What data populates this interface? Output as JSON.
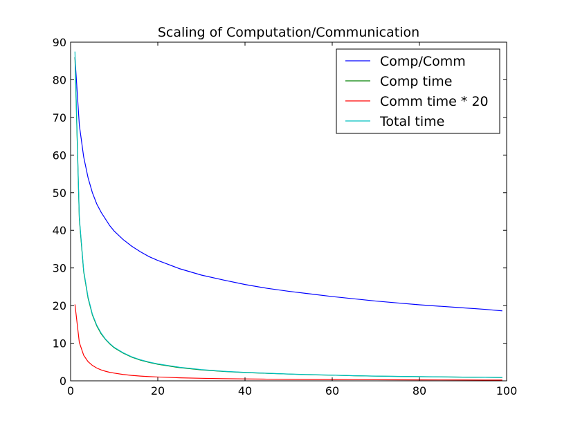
{
  "chart_data": {
    "type": "line",
    "title": "Scaling of Computation/Communication",
    "xlabel": "",
    "ylabel": "",
    "xlim": [
      0,
      100
    ],
    "ylim": [
      0,
      90
    ],
    "xticks": [
      0,
      20,
      40,
      60,
      80,
      100
    ],
    "yticks": [
      0,
      10,
      20,
      30,
      40,
      50,
      60,
      70,
      80,
      90
    ],
    "grid": false,
    "legend_position": "top-right",
    "x": [
      1,
      2,
      3,
      4,
      5,
      6,
      7,
      8,
      9,
      10,
      12,
      14,
      16,
      18,
      20,
      25,
      30,
      35,
      40,
      45,
      50,
      55,
      60,
      65,
      70,
      75,
      80,
      85,
      90,
      95,
      99
    ],
    "series": [
      {
        "name": "Comp/Comm",
        "color": "#0000ff",
        "values": [
          86.0,
          68.0,
          59.5,
          54.0,
          50.0,
          47.0,
          44.8,
          43.0,
          41.2,
          39.8,
          37.6,
          35.8,
          34.3,
          33.0,
          32.0,
          29.8,
          28.1,
          26.8,
          25.6,
          24.6,
          23.8,
          23.1,
          22.4,
          21.8,
          21.2,
          20.7,
          20.2,
          19.8,
          19.4,
          19.0,
          18.6
        ]
      },
      {
        "name": "Comp time",
        "color": "#008000",
        "values": [
          86.0,
          43.0,
          29.0,
          22.0,
          17.5,
          14.6,
          12.5,
          11.0,
          9.8,
          8.8,
          7.4,
          6.3,
          5.5,
          4.9,
          4.4,
          3.5,
          2.9,
          2.5,
          2.2,
          2.0,
          1.8,
          1.6,
          1.5,
          1.35,
          1.25,
          1.17,
          1.1,
          1.04,
          0.98,
          0.93,
          0.89
        ]
      },
      {
        "name": "Comm time * 20",
        "color": "#ff0000",
        "values": [
          20.3,
          10.2,
          6.8,
          5.1,
          4.1,
          3.4,
          2.9,
          2.55,
          2.25,
          2.05,
          1.7,
          1.45,
          1.27,
          1.13,
          1.02,
          0.81,
          0.68,
          0.58,
          0.51,
          0.45,
          0.41,
          0.37,
          0.34,
          0.31,
          0.29,
          0.27,
          0.25,
          0.24,
          0.23,
          0.21,
          0.2
        ]
      },
      {
        "name": "Total time",
        "color": "#00bfbf",
        "values": [
          87.5,
          43.5,
          29.3,
          22.3,
          17.7,
          14.8,
          12.7,
          11.1,
          9.9,
          8.9,
          7.5,
          6.4,
          5.6,
          5.0,
          4.5,
          3.6,
          3.0,
          2.55,
          2.25,
          2.02,
          1.82,
          1.65,
          1.52,
          1.37,
          1.27,
          1.19,
          1.12,
          1.05,
          0.99,
          0.94,
          0.9
        ]
      }
    ]
  }
}
